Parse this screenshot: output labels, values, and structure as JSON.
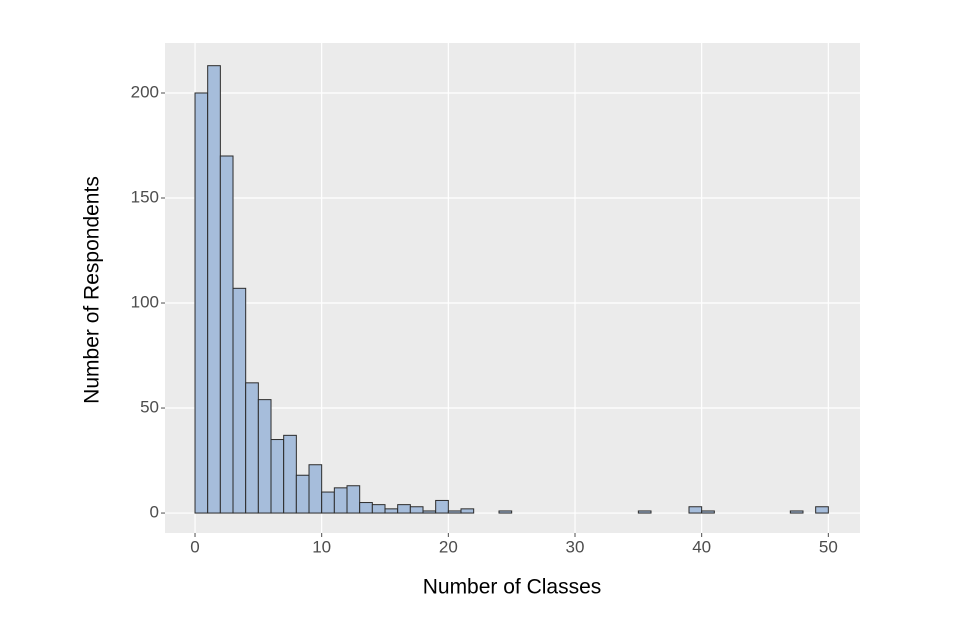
{
  "chart_data": {
    "type": "histogram",
    "x_label": "Number of Classes",
    "y_label": "Number of Respondents",
    "bins": [
      0,
      1,
      2,
      3,
      4,
      5,
      6,
      7,
      8,
      9,
      10,
      11,
      12,
      13,
      14,
      15,
      16,
      17,
      18,
      19,
      20,
      21,
      22,
      23,
      24,
      25,
      26,
      27,
      28,
      29,
      30,
      31,
      32,
      33,
      34,
      35,
      36,
      37,
      38,
      39,
      40,
      41,
      42,
      43,
      44,
      45,
      46,
      47,
      48,
      49,
      50
    ],
    "values": [
      200,
      213,
      170,
      107,
      62,
      54,
      35,
      37,
      18,
      23,
      10,
      12,
      13,
      5,
      4,
      2,
      4,
      3,
      1,
      6,
      1,
      2,
      0,
      0,
      1,
      0,
      0,
      0,
      0,
      0,
      0,
      0,
      0,
      0,
      0,
      1,
      0,
      0,
      0,
      3,
      1,
      0,
      0,
      0,
      0,
      0,
      0,
      1,
      0,
      3
    ],
    "color": "#a6bddb",
    "xlim": [
      -2.37,
      52.5
    ],
    "ylim": [
      -9.5,
      223.8
    ],
    "xticks": [
      0,
      10,
      20,
      30,
      40,
      50
    ],
    "yticks": [
      0,
      50,
      100,
      150,
      200
    ],
    "grid": true
  }
}
